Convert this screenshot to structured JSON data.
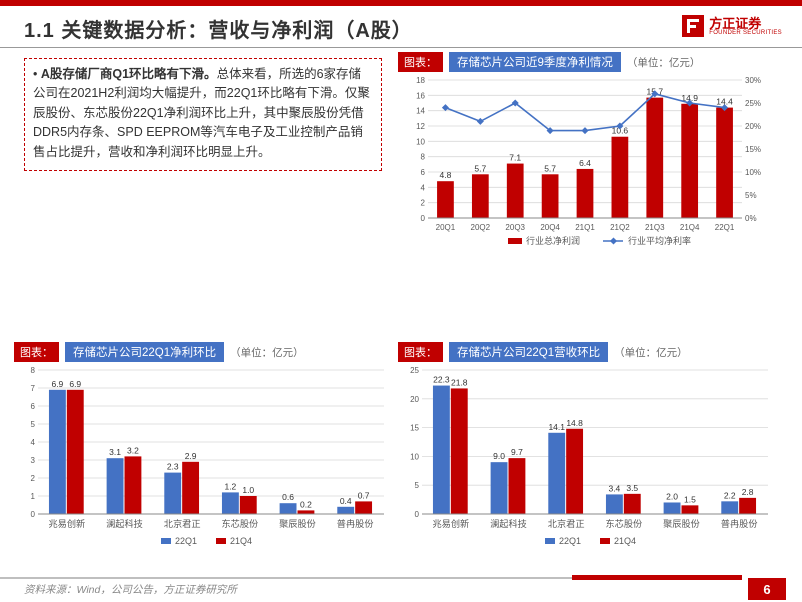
{
  "header": {
    "title": "1.1 关键数据分析：营收与净利润（A股）",
    "logo_cn": "方正证券",
    "logo_en": "FOUNDER SECURITIES"
  },
  "textbox": {
    "lead": "A股存储厂商Q1环比略有下滑。",
    "body": "总体来看，所选的6家存储公司在2021H2利润均大幅提升，而22Q1环比略有下滑。仅聚辰股份、东芯股份22Q1净利润环比上升，其中聚辰股份凭借DDR5内存条、SPD EEPROM等汽车电子及工业控制产品销售占比提升，营收和净利润环比明显上升。"
  },
  "chart_labels": {
    "tubiao": "图表：",
    "unit": "（单位：亿元）"
  },
  "chart1": {
    "title": "存储芯片公司近9季度净利情况",
    "type": "bar+line",
    "categories": [
      "20Q1",
      "20Q2",
      "20Q3",
      "20Q4",
      "21Q1",
      "21Q2",
      "21Q3",
      "21Q4",
      "22Q1"
    ],
    "bar_values": [
      4.8,
      5.7,
      7.1,
      5.7,
      6.4,
      10.6,
      15.7,
      14.9,
      14.4
    ],
    "bar_color": "#c00000",
    "line_values": [
      24,
      21,
      25,
      19,
      19,
      20,
      27,
      25,
      24
    ],
    "line_color": "#4472c4",
    "y1_max": 18,
    "y1_step": 2,
    "y2_max": 30,
    "y2_step": 5,
    "legend": [
      "行业总净利润",
      "行业平均净利率"
    ],
    "axis_fontsize": 8,
    "label_fontsize": 8.5,
    "grid_color": "#d9d9d9",
    "bg": "#ffffff"
  },
  "chart2": {
    "title": "存储芯片公司22Q1净利环比",
    "type": "grouped-bar",
    "categories": [
      "兆易创新",
      "澜起科技",
      "北京君正",
      "东芯股份",
      "聚辰股份",
      "普冉股份"
    ],
    "series": [
      {
        "name": "22Q1",
        "color": "#4472c4",
        "values": [
          6.9,
          3.1,
          2.3,
          1.2,
          0.6,
          0.4
        ]
      },
      {
        "name": "21Q4",
        "color": "#c00000",
        "values": [
          6.9,
          3.2,
          2.9,
          1.0,
          0.2,
          0.7
        ]
      }
    ],
    "y_max": 8,
    "y_step": 1,
    "axis_fontsize": 8,
    "label_fontsize": 8.5,
    "grid_color": "#d9d9d9",
    "bg": "#ffffff"
  },
  "chart3": {
    "title": "存储芯片公司22Q1营收环比",
    "type": "grouped-bar",
    "categories": [
      "兆易创新",
      "澜起科技",
      "北京君正",
      "东芯股份",
      "聚辰股份",
      "普冉股份"
    ],
    "series": [
      {
        "name": "22Q1",
        "color": "#4472c4",
        "values": [
          22.3,
          9.0,
          14.1,
          3.4,
          2.0,
          2.2
        ]
      },
      {
        "name": "21Q4",
        "color": "#c00000",
        "values": [
          21.8,
          9.7,
          14.8,
          3.5,
          1.5,
          2.8
        ]
      }
    ],
    "y_max": 25,
    "y_step": 5,
    "axis_fontsize": 8,
    "label_fontsize": 8.5,
    "grid_color": "#d9d9d9",
    "bg": "#ffffff"
  },
  "footer": {
    "source": "资料来源：Wind，公司公告，方正证券研究所",
    "page": "6"
  }
}
